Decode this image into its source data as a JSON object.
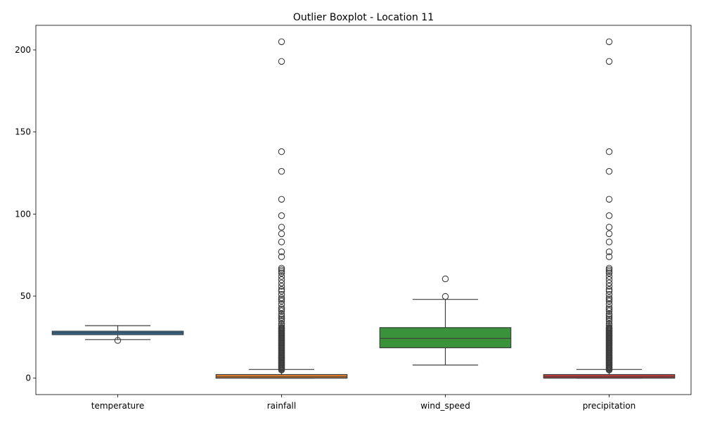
{
  "chart_data": {
    "type": "boxplot",
    "title": "Outlier Boxplot - Location 11",
    "xlabel": "",
    "ylabel": "",
    "ylim": [
      -10,
      215
    ],
    "yticks": [
      0,
      50,
      100,
      150,
      200
    ],
    "categories": [
      "temperature",
      "rainfall",
      "wind_speed",
      "precipitation"
    ],
    "grid": false,
    "legend": "none",
    "boxes": [
      {
        "name": "temperature",
        "color": "#3274a1",
        "whisker_low": 23.5,
        "q1": 26.5,
        "median": 27.6,
        "q3": 28.6,
        "whisker_high": 32.0,
        "outliers": [
          23.0
        ]
      },
      {
        "name": "rainfall",
        "color": "#e1812c",
        "whisker_low": 0,
        "q1": 0,
        "median": 0.8,
        "q3": 2.2,
        "whisker_high": 5.3,
        "outliers": [
          5,
          5.5,
          6,
          6.5,
          7,
          7.5,
          8,
          8.5,
          9,
          9.5,
          10,
          10.5,
          11,
          11.5,
          12,
          12.5,
          13,
          13.5,
          14,
          14.5,
          15,
          15.5,
          16,
          16.5,
          17,
          17.5,
          18,
          18.5,
          19,
          19.5,
          20,
          20.5,
          21,
          21.5,
          22,
          22.5,
          23,
          23.5,
          24,
          24.5,
          25,
          25.5,
          26,
          26.5,
          27,
          27.5,
          28,
          28.5,
          29,
          29.5,
          30,
          30.5,
          31,
          32,
          33,
          35,
          36,
          37,
          38,
          39,
          41,
          42,
          43,
          45,
          47,
          48,
          49,
          51,
          53,
          54,
          56,
          58,
          60,
          62,
          64,
          65,
          66,
          67,
          74,
          77,
          83,
          88,
          92,
          99,
          109,
          126,
          138,
          193,
          205
        ]
      },
      {
        "name": "wind_speed",
        "color": "#3a923a",
        "whisker_low": 8.0,
        "q1": 18.5,
        "median": 24.2,
        "q3": 30.8,
        "whisker_high": 48.0,
        "outliers": [
          49.8,
          60.5
        ]
      },
      {
        "name": "precipitation",
        "color": "#c03d3e",
        "whisker_low": 0,
        "q1": 0,
        "median": 0.8,
        "q3": 2.2,
        "whisker_high": 5.3,
        "outliers": [
          5,
          5.5,
          6,
          6.5,
          7,
          7.5,
          8,
          8.5,
          9,
          9.5,
          10,
          10.5,
          11,
          11.5,
          12,
          12.5,
          13,
          13.5,
          14,
          14.5,
          15,
          15.5,
          16,
          16.5,
          17,
          17.5,
          18,
          18.5,
          19,
          19.5,
          20,
          20.5,
          21,
          21.5,
          22,
          22.5,
          23,
          23.5,
          24,
          24.5,
          25,
          25.5,
          26,
          26.5,
          27,
          27.5,
          28,
          28.5,
          29,
          29.5,
          30,
          30.5,
          31,
          32,
          33,
          35,
          36,
          37,
          38,
          39,
          41,
          42,
          43,
          45,
          47,
          48,
          49,
          51,
          53,
          54,
          56,
          58,
          60,
          62,
          64,
          65,
          66,
          67,
          74,
          77,
          83,
          88,
          92,
          99,
          109,
          126,
          138,
          193,
          205
        ]
      }
    ]
  }
}
